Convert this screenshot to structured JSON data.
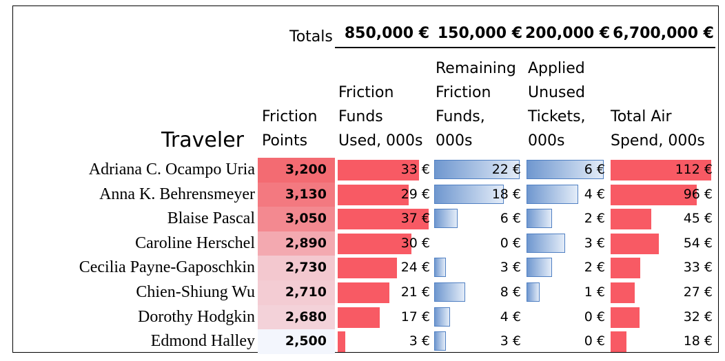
{
  "labels": {
    "totals": "Totals",
    "traveler": "Traveler",
    "friction_points": [
      "Friction",
      "Points"
    ],
    "friction_funds_used": [
      "Friction",
      "Funds",
      "Used, 000s"
    ],
    "remaining_friction_funds": [
      "Remaining",
      "Friction",
      "Funds,",
      "000s"
    ],
    "applied_unused_tickets": [
      "Applied",
      "Unused",
      "Tickets,",
      "000s"
    ],
    "total_air_spend": [
      "Total Air",
      "Spend, 000s"
    ]
  },
  "totals": [
    "850,000 €",
    "150,000 €",
    "200,000 €",
    "6,700,000 €"
  ],
  "colors": {
    "red_bar": "#f85a64",
    "blue_bar_light": "#e3ecf8",
    "blue_bar_dark": "#6f97cf",
    "blue_border": "#4f7fc2",
    "points_high": "#f36b72",
    "points_low": "#f3f6fd"
  },
  "chart_data": {
    "type": "table",
    "rows": [
      {
        "traveler": "Adriana C. Ocampo Uria",
        "points": "3,200",
        "points_value": 3200,
        "funds_used": 33,
        "remaining": 22,
        "applied": 6,
        "air": 112
      },
      {
        "traveler": "Anna K. Behrensmeyer",
        "points": "3,130",
        "points_value": 3130,
        "funds_used": 29,
        "remaining": 18,
        "applied": 4,
        "air": 96
      },
      {
        "traveler": "Blaise Pascal",
        "points": "3,050",
        "points_value": 3050,
        "funds_used": 37,
        "remaining": 6,
        "applied": 2,
        "air": 45
      },
      {
        "traveler": "Caroline Herschel",
        "points": "2,890",
        "points_value": 2890,
        "funds_used": 30,
        "remaining": 0,
        "applied": 3,
        "air": 54
      },
      {
        "traveler": "Cecilia Payne-Gaposchkin",
        "points": "2,730",
        "points_value": 2730,
        "funds_used": 24,
        "remaining": 3,
        "applied": 2,
        "air": 33
      },
      {
        "traveler": "Chien-Shiung Wu",
        "points": "2,710",
        "points_value": 2710,
        "funds_used": 21,
        "remaining": 8,
        "applied": 1,
        "air": 27
      },
      {
        "traveler": "Dorothy Hodgkin",
        "points": "2,680",
        "points_value": 2680,
        "funds_used": 17,
        "remaining": 4,
        "applied": 0,
        "air": 32
      },
      {
        "traveler": "Edmond Halley",
        "points": "2,500",
        "points_value": 2500,
        "funds_used": 3,
        "remaining": 3,
        "applied": 0,
        "air": 18
      }
    ],
    "columns": [
      "Traveler",
      "Friction Points",
      "Friction Funds Used, 000s",
      "Remaining Friction Funds, 000s",
      "Applied Unused Tickets, 000s",
      "Total Air Spend, 000s"
    ],
    "bar_scale_max": {
      "funds_used": 37,
      "remaining": 22,
      "applied": 6,
      "air": 112
    },
    "currency_suffix": " €"
  }
}
